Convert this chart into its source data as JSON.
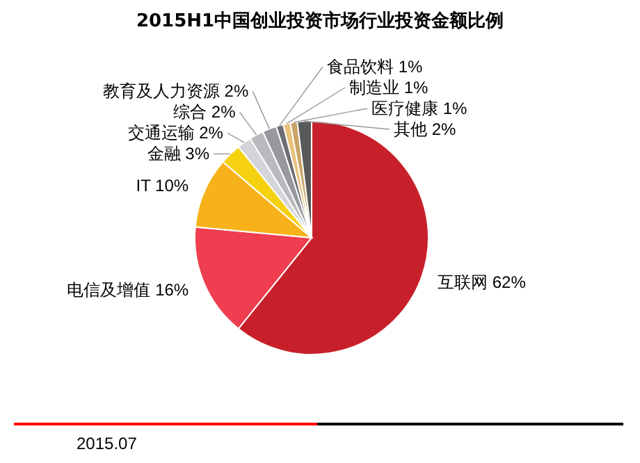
{
  "chart_data": {
    "type": "pie",
    "title": "2015H1中国创业投资市场行业投资金额比例",
    "categories": [
      "互联网",
      "电信及增值",
      "IT",
      "金融",
      "交通运输",
      "综合",
      "教育及人力资源",
      "食品饮料",
      "制造业",
      "医疗健康",
      "其他"
    ],
    "values": [
      62,
      16,
      10,
      3,
      2,
      2,
      2,
      1,
      1,
      1,
      2
    ],
    "value_labels": [
      "62%",
      "16%",
      "10%",
      "3%",
      "2%",
      "2%",
      "2%",
      "1%",
      "1%",
      "1%",
      "2%"
    ],
    "colors": [
      "#c8202a",
      "#ee3e4f",
      "#f7b21b",
      "#f5d10f",
      "#d3d5d8",
      "#b8babd",
      "#97999c",
      "#6d6e71",
      "#e8c27d",
      "#c9a468",
      "#58595b"
    ],
    "annotations": [
      "2015.07"
    ]
  }
}
